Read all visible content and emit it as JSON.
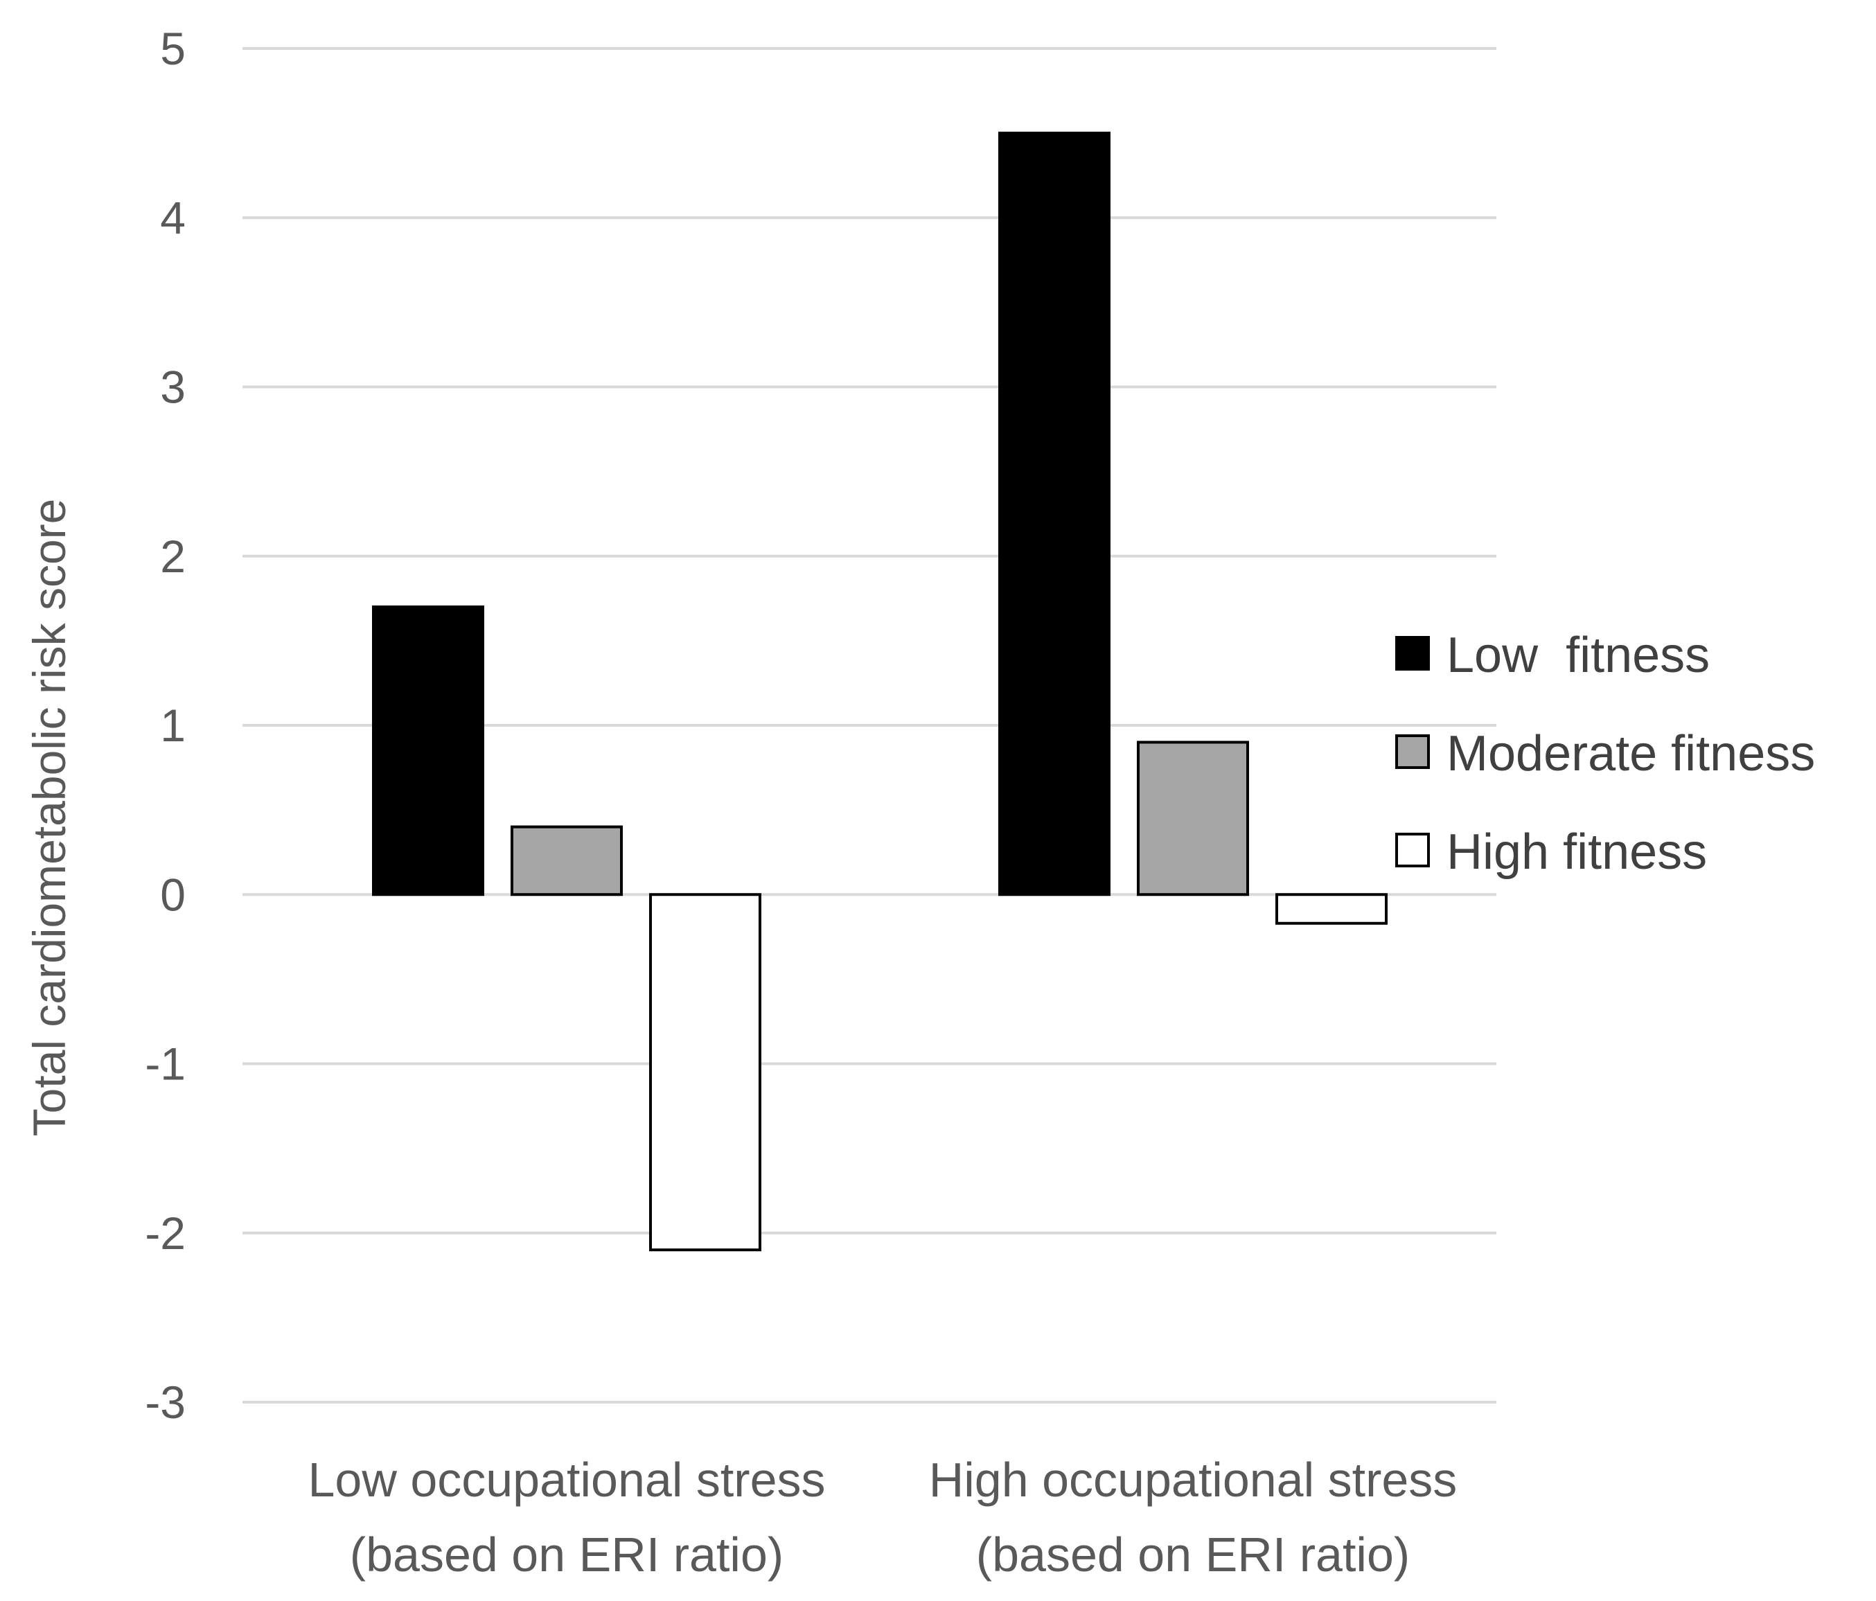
{
  "chart_data": {
    "type": "bar",
    "title": "",
    "xlabel": "",
    "ylabel": "Total cardiometabolic risk score",
    "ylim": [
      -3,
      5
    ],
    "yticks": [
      5,
      4,
      3,
      2,
      1,
      0,
      -1,
      -2,
      -3
    ],
    "grid": true,
    "legend_position": "right",
    "categories": [
      [
        "Low occupational stress",
        "(based on ERI ratio)"
      ],
      [
        "High occupational stress",
        "(based on ERI ratio)"
      ]
    ],
    "series": [
      {
        "name": "Low  fitness",
        "color": "#000000",
        "values": [
          1.7,
          4.5
        ]
      },
      {
        "name": "Moderate fitness",
        "color": "#a6a6a6",
        "values": [
          0.4,
          0.9
        ]
      },
      {
        "name": "High fitness",
        "color": "#ffffff",
        "values": [
          -2.1,
          -0.17
        ]
      }
    ]
  }
}
